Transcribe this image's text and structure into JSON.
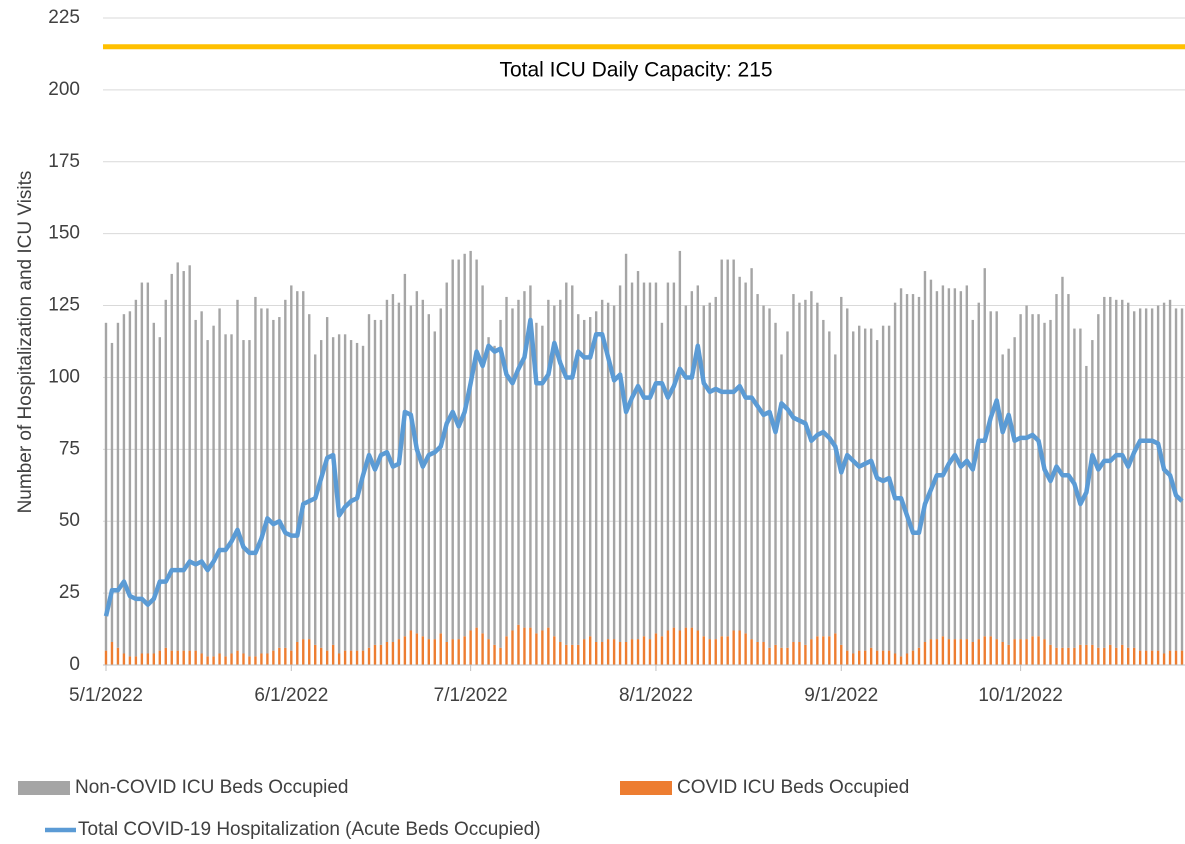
{
  "chart_data": {
    "type": "bar_line",
    "y_axis_label": "Number of Hospitalization and ICU Visits",
    "ylim": [
      0,
      225
    ],
    "yticks": [
      0,
      25,
      50,
      75,
      100,
      125,
      150,
      175,
      200,
      225
    ],
    "grid": true,
    "legend": "bottom",
    "hline": {
      "value": 215,
      "color": "#ffc000",
      "label": "Total ICU Daily Capacity: 215"
    },
    "categories": [
      "5/1/2022",
      null,
      null,
      null,
      null,
      null,
      null,
      null,
      null,
      null,
      null,
      null,
      null,
      null,
      null,
      null,
      null,
      null,
      null,
      null,
      null,
      null,
      null,
      null,
      null,
      null,
      null,
      null,
      null,
      null,
      null,
      "6/1/2022",
      null,
      null,
      null,
      null,
      null,
      null,
      null,
      null,
      null,
      null,
      null,
      null,
      null,
      null,
      null,
      null,
      null,
      null,
      null,
      null,
      null,
      null,
      null,
      null,
      null,
      null,
      null,
      null,
      null,
      "7/1/2022",
      null,
      null,
      null,
      null,
      null,
      null,
      null,
      null,
      null,
      null,
      null,
      null,
      null,
      null,
      null,
      null,
      null,
      null,
      null,
      null,
      null,
      null,
      null,
      null,
      null,
      null,
      null,
      null,
      null,
      null,
      "8/1/2022",
      null,
      null,
      null,
      null,
      null,
      null,
      null,
      null,
      null,
      null,
      null,
      null,
      null,
      null,
      null,
      null,
      null,
      null,
      null,
      null,
      null,
      null,
      null,
      null,
      null,
      null,
      null,
      null,
      null,
      null,
      "9/1/2022",
      null,
      null,
      null,
      null,
      null,
      null,
      null,
      null,
      null,
      null,
      null,
      null,
      null,
      null,
      null,
      null,
      null,
      null,
      null,
      null,
      null,
      null,
      null,
      null,
      null,
      null,
      null,
      null,
      null,
      "10/1/2022",
      null,
      null,
      null,
      null,
      null,
      null,
      null,
      null,
      null,
      null,
      null,
      null,
      null,
      null,
      null,
      null,
      null,
      null,
      null,
      null,
      null,
      null,
      null,
      null,
      null,
      null,
      null
    ],
    "series": [
      {
        "name": "Non-COVID ICU Beds Occupied",
        "type": "bar",
        "color": "#a5a5a5",
        "values": [
          114,
          104,
          113,
          118,
          120,
          124,
          129,
          129,
          115,
          109,
          121,
          131,
          135,
          132,
          134,
          115,
          119,
          110,
          115,
          120,
          112,
          111,
          122,
          109,
          110,
          125,
          120,
          120,
          115,
          115,
          121,
          127,
          122,
          121,
          113,
          101,
          107,
          116,
          107,
          111,
          110,
          108,
          107,
          106,
          116,
          113,
          113,
          119,
          121,
          117,
          126,
          113,
          119,
          117,
          113,
          107,
          113,
          125,
          132,
          132,
          133,
          132,
          128,
          121,
          105,
          104,
          114,
          118,
          112,
          113,
          117,
          119,
          108,
          106,
          114,
          115,
          119,
          126,
          125,
          115,
          111,
          111,
          115,
          119,
          117,
          116,
          124,
          135,
          124,
          128,
          123,
          124,
          122,
          109,
          121,
          120,
          132,
          112,
          117,
          120,
          115,
          117,
          119,
          131,
          131,
          129,
          123,
          122,
          129,
          121,
          117,
          118,
          112,
          102,
          110,
          121,
          118,
          120,
          121,
          116,
          110,
          106,
          97,
          121,
          119,
          112,
          113,
          112,
          111,
          108,
          113,
          113,
          122,
          128,
          125,
          124,
          122,
          129,
          125,
          121,
          122,
          122,
          122,
          121,
          123,
          112,
          117,
          128,
          113,
          114,
          100,
          103,
          105,
          113,
          116,
          112,
          112,
          110,
          113,
          123,
          129,
          123,
          111,
          110,
          97,
          106,
          116,
          122,
          121,
          121,
          120,
          120,
          117,
          119,
          119,
          119,
          120,
          122,
          122,
          119,
          119
        ]
      },
      {
        "name": "COVID ICU Beds Occupied",
        "type": "bar",
        "color": "#ed7d31",
        "values": [
          5,
          8,
          6,
          4,
          3,
          3,
          4,
          4,
          4,
          5,
          6,
          5,
          5,
          5,
          5,
          5,
          4,
          3,
          3,
          4,
          3,
          4,
          5,
          4,
          3,
          3,
          4,
          4,
          5,
          6,
          6,
          5,
          8,
          9,
          9,
          7,
          6,
          5,
          7,
          4,
          5,
          5,
          5,
          5,
          6,
          7,
          7,
          8,
          8,
          9,
          10,
          12,
          11,
          10,
          9,
          9,
          11,
          8,
          9,
          9,
          10,
          12,
          13,
          11,
          9,
          7,
          6,
          10,
          12,
          14,
          13,
          13,
          11,
          12,
          13,
          10,
          8,
          7,
          7,
          7,
          9,
          10,
          8,
          8,
          9,
          9,
          8,
          8,
          9,
          9,
          10,
          9,
          11,
          10,
          12,
          13,
          12,
          13,
          13,
          12,
          10,
          9,
          9,
          10,
          10,
          12,
          12,
          11,
          9,
          8,
          8,
          6,
          7,
          6,
          6,
          8,
          8,
          7,
          9,
          10,
          10,
          10,
          11,
          7,
          5,
          4,
          5,
          5,
          6,
          5,
          5,
          5,
          4,
          3,
          4,
          5,
          6,
          8,
          9,
          9,
          10,
          9,
          9,
          9,
          9,
          8,
          9,
          10,
          10,
          9,
          8,
          7,
          9,
          9,
          9,
          10,
          10,
          9,
          7,
          6,
          6,
          6,
          6,
          7,
          7,
          7,
          6,
          6,
          7,
          6,
          7,
          6,
          6,
          5,
          5,
          5,
          5,
          4,
          5,
          5,
          5
        ]
      },
      {
        "name": "Total COVID-19 Hospitalization (Acute Beds Occupied)",
        "type": "line",
        "color": "#5b9bd5",
        "values": [
          17,
          26,
          26,
          29,
          24,
          23,
          23,
          21,
          23,
          29,
          29,
          33,
          33,
          33,
          36,
          35,
          36,
          33,
          36,
          40,
          40,
          43,
          47,
          41,
          39,
          39,
          44,
          51,
          49,
          50,
          46,
          45,
          45,
          56,
          57,
          58,
          65,
          72,
          73,
          52,
          55,
          57,
          58,
          66,
          73,
          68,
          73,
          74,
          69,
          70,
          88,
          87,
          75,
          69,
          73,
          74,
          76,
          84,
          88,
          83,
          88,
          98,
          109,
          104,
          111,
          109,
          110,
          101,
          98,
          103,
          107,
          120,
          98,
          98,
          101,
          112,
          105,
          100,
          100,
          109,
          107,
          107,
          115,
          115,
          107,
          99,
          101,
          88,
          93,
          97,
          93,
          93,
          98,
          98,
          93,
          97,
          103,
          100,
          100,
          111,
          98,
          95,
          96,
          95,
          95,
          95,
          97,
          93,
          93,
          90,
          87,
          88,
          81,
          91,
          89,
          86,
          85,
          84,
          78,
          80,
          81,
          79,
          76,
          67,
          73,
          71,
          69,
          70,
          71,
          65,
          64,
          65,
          58,
          58,
          52,
          46,
          46,
          56,
          61,
          66,
          66,
          70,
          73,
          69,
          71,
          68,
          78,
          78,
          86,
          92,
          81,
          87,
          78,
          79,
          79,
          80,
          78,
          68,
          64,
          69,
          66,
          66,
          63,
          56,
          60,
          73,
          68,
          71,
          71,
          73,
          73,
          69,
          74,
          78,
          78,
          78,
          77,
          68,
          66,
          59,
          57
        ]
      }
    ]
  }
}
